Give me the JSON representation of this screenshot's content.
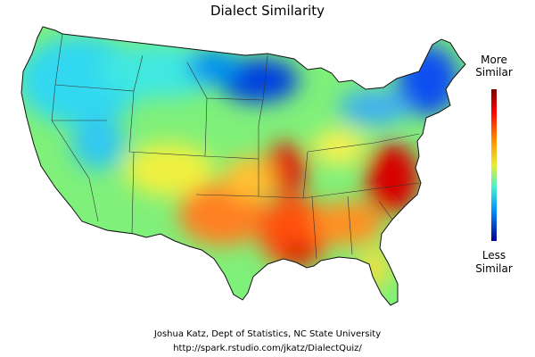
{
  "title": "Dialect Similarity",
  "legend": {
    "top": [
      "More",
      "Similar"
    ],
    "bottom": [
      "Less",
      "Similar"
    ]
  },
  "credits": [
    "Joshua Katz, Dept of Statistics, NC State University",
    "http://spark.rstudio.com/jkatz/DialectQuiz/"
  ]
}
